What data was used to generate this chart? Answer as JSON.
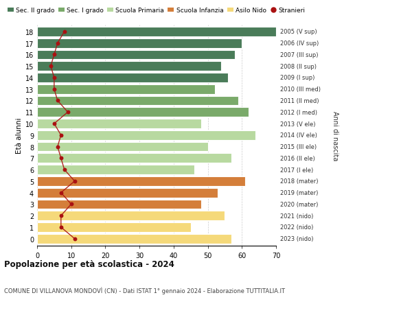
{
  "ages": [
    18,
    17,
    16,
    15,
    14,
    13,
    12,
    11,
    10,
    9,
    8,
    7,
    6,
    5,
    4,
    3,
    2,
    1,
    0
  ],
  "years": [
    "2005 (V sup)",
    "2006 (IV sup)",
    "2007 (III sup)",
    "2008 (II sup)",
    "2009 (I sup)",
    "2010 (III med)",
    "2011 (II med)",
    "2012 (I med)",
    "2013 (V ele)",
    "2014 (IV ele)",
    "2015 (III ele)",
    "2016 (II ele)",
    "2017 (I ele)",
    "2018 (mater)",
    "2019 (mater)",
    "2020 (mater)",
    "2021 (nido)",
    "2022 (nido)",
    "2023 (nido)"
  ],
  "bar_values": [
    70,
    60,
    58,
    54,
    56,
    52,
    59,
    62,
    48,
    64,
    50,
    57,
    46,
    61,
    53,
    48,
    55,
    45,
    57
  ],
  "stranieri": [
    8,
    6,
    5,
    4,
    5,
    5,
    6,
    9,
    5,
    7,
    6,
    7,
    8,
    11,
    7,
    10,
    7,
    7,
    11
  ],
  "color_map": [
    "#4a7c59",
    "#4a7c59",
    "#4a7c59",
    "#4a7c59",
    "#4a7c59",
    "#7aaa6a",
    "#7aaa6a",
    "#7aaa6a",
    "#b8d9a0",
    "#b8d9a0",
    "#b8d9a0",
    "#b8d9a0",
    "#b8d9a0",
    "#d47e3a",
    "#d47e3a",
    "#d47e3a",
    "#f5d97a",
    "#f5d97a",
    "#f5d97a"
  ],
  "stranieri_color": "#aa1111",
  "title": "Popolazione per età scolastica - 2024",
  "subtitle": "COMUNE DI VILLANOVA MONDOVÌ (CN) - Dati ISTAT 1° gennaio 2024 - Elaborazione TUTTITALIA.IT",
  "ylabel_left": "Età alunni",
  "ylabel_right": "Anni di nascita",
  "legend_labels": [
    "Sec. II grado",
    "Sec. I grado",
    "Scuola Primaria",
    "Scuola Infanzia",
    "Asilo Nido",
    "Stranieri"
  ],
  "legend_colors": [
    "#4a7c59",
    "#7aaa6a",
    "#b8d9a0",
    "#d47e3a",
    "#f5d97a",
    "#aa1111"
  ],
  "xlim": [
    0,
    70
  ],
  "background_color": "#ffffff",
  "bar_height": 0.82,
  "grid_color": "#cccccc"
}
